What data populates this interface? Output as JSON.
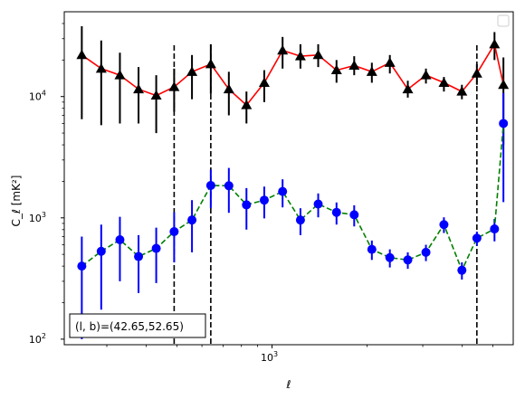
{
  "chart_data": {
    "type": "scatter",
    "x_scale": "log",
    "y_scale": "log",
    "xlim": [
      220,
      5800
    ],
    "ylim": [
      90,
      50000
    ],
    "xlabel": "ℓ",
    "ylabel": "C_ℓ  [mK²]",
    "x_tick_major": [
      {
        "value": 1000,
        "base": "10",
        "exp": "3"
      }
    ],
    "y_tick_major": [
      {
        "value": 100,
        "base": "10",
        "exp": "2"
      },
      {
        "value": 1000,
        "base": "10",
        "exp": "3"
      },
      {
        "value": 10000,
        "base": "10",
        "exp": "4"
      }
    ],
    "vlines": [
      490,
      640,
      4450
    ],
    "annotation": "(l, b)=(42.65,52.65)",
    "legend": "top-right (empty)",
    "series": [
      {
        "marker": "triangle",
        "line_style": "solid",
        "line_color": "#ff0000",
        "marker_color": "#000000",
        "points": [
          {
            "x": 250,
            "y": 22000,
            "lo": 6500,
            "hi": 38000
          },
          {
            "x": 288,
            "y": 17000,
            "lo": 5800,
            "hi": 29000
          },
          {
            "x": 330,
            "y": 15000,
            "lo": 6000,
            "hi": 23000
          },
          {
            "x": 378,
            "y": 11500,
            "lo": 6000,
            "hi": 17500
          },
          {
            "x": 430,
            "y": 10200,
            "lo": 5000,
            "hi": 15000
          },
          {
            "x": 490,
            "y": 12000,
            "lo": 7500,
            "hi": 17000
          },
          {
            "x": 558,
            "y": 16000,
            "lo": 9500,
            "hi": 22000
          },
          {
            "x": 640,
            "y": 18500,
            "lo": 10500,
            "hi": 27000
          },
          {
            "x": 730,
            "y": 11500,
            "lo": 7000,
            "hi": 16000
          },
          {
            "x": 830,
            "y": 8500,
            "lo": 6000,
            "hi": 11000
          },
          {
            "x": 945,
            "y": 13000,
            "lo": 9000,
            "hi": 16500
          },
          {
            "x": 1080,
            "y": 24000,
            "lo": 17000,
            "hi": 31000
          },
          {
            "x": 1230,
            "y": 21500,
            "lo": 17000,
            "hi": 27000
          },
          {
            "x": 1400,
            "y": 22000,
            "lo": 17500,
            "hi": 27000
          },
          {
            "x": 1600,
            "y": 16500,
            "lo": 13000,
            "hi": 20000
          },
          {
            "x": 1820,
            "y": 18000,
            "lo": 15000,
            "hi": 21500
          },
          {
            "x": 2070,
            "y": 16000,
            "lo": 13000,
            "hi": 19000
          },
          {
            "x": 2360,
            "y": 19000,
            "lo": 15500,
            "hi": 22000
          },
          {
            "x": 2690,
            "y": 11500,
            "lo": 9800,
            "hi": 13500
          },
          {
            "x": 3070,
            "y": 15000,
            "lo": 12800,
            "hi": 17000
          },
          {
            "x": 3500,
            "y": 13000,
            "lo": 11000,
            "hi": 14500
          },
          {
            "x": 3990,
            "y": 11000,
            "lo": 9500,
            "hi": 12500
          },
          {
            "x": 4450,
            "y": 15500,
            "lo": 12500,
            "hi": 18500
          },
          {
            "x": 5060,
            "y": 27000,
            "lo": 20000,
            "hi": 34000
          },
          {
            "x": 5400,
            "y": 12500,
            "lo": 4000,
            "hi": 21000
          }
        ]
      },
      {
        "marker": "circle",
        "line_style": "dashed",
        "line_color": "#008000",
        "marker_color": "#0000ff",
        "points": [
          {
            "x": 250,
            "y": 400,
            "lo": 100,
            "hi": 700
          },
          {
            "x": 288,
            "y": 530,
            "lo": 175,
            "hi": 880
          },
          {
            "x": 330,
            "y": 660,
            "lo": 300,
            "hi": 1020
          },
          {
            "x": 378,
            "y": 480,
            "lo": 240,
            "hi": 720
          },
          {
            "x": 430,
            "y": 560,
            "lo": 290,
            "hi": 830
          },
          {
            "x": 490,
            "y": 770,
            "lo": 430,
            "hi": 1110
          },
          {
            "x": 558,
            "y": 960,
            "lo": 520,
            "hi": 1400
          },
          {
            "x": 640,
            "y": 1850,
            "lo": 1200,
            "hi": 2500
          },
          {
            "x": 730,
            "y": 1840,
            "lo": 1100,
            "hi": 2580
          },
          {
            "x": 830,
            "y": 1280,
            "lo": 800,
            "hi": 1760
          },
          {
            "x": 945,
            "y": 1400,
            "lo": 990,
            "hi": 1810
          },
          {
            "x": 1080,
            "y": 1650,
            "lo": 1220,
            "hi": 2080
          },
          {
            "x": 1230,
            "y": 960,
            "lo": 720,
            "hi": 1200
          },
          {
            "x": 1400,
            "y": 1300,
            "lo": 1010,
            "hi": 1590
          },
          {
            "x": 1600,
            "y": 1110,
            "lo": 880,
            "hi": 1340
          },
          {
            "x": 1820,
            "y": 1060,
            "lo": 850,
            "hi": 1270
          },
          {
            "x": 2070,
            "y": 550,
            "lo": 450,
            "hi": 650
          },
          {
            "x": 2360,
            "y": 470,
            "lo": 390,
            "hi": 550
          },
          {
            "x": 2690,
            "y": 450,
            "lo": 380,
            "hi": 520
          },
          {
            "x": 3070,
            "y": 520,
            "lo": 440,
            "hi": 600
          },
          {
            "x": 3500,
            "y": 880,
            "lo": 750,
            "hi": 1010
          },
          {
            "x": 3990,
            "y": 370,
            "lo": 310,
            "hi": 430
          },
          {
            "x": 4450,
            "y": 680,
            "lo": 590,
            "hi": 770
          },
          {
            "x": 5060,
            "y": 810,
            "lo": 640,
            "hi": 980
          },
          {
            "x": 5400,
            "y": 6000,
            "lo": 1350,
            "hi": 10700
          }
        ]
      }
    ]
  }
}
